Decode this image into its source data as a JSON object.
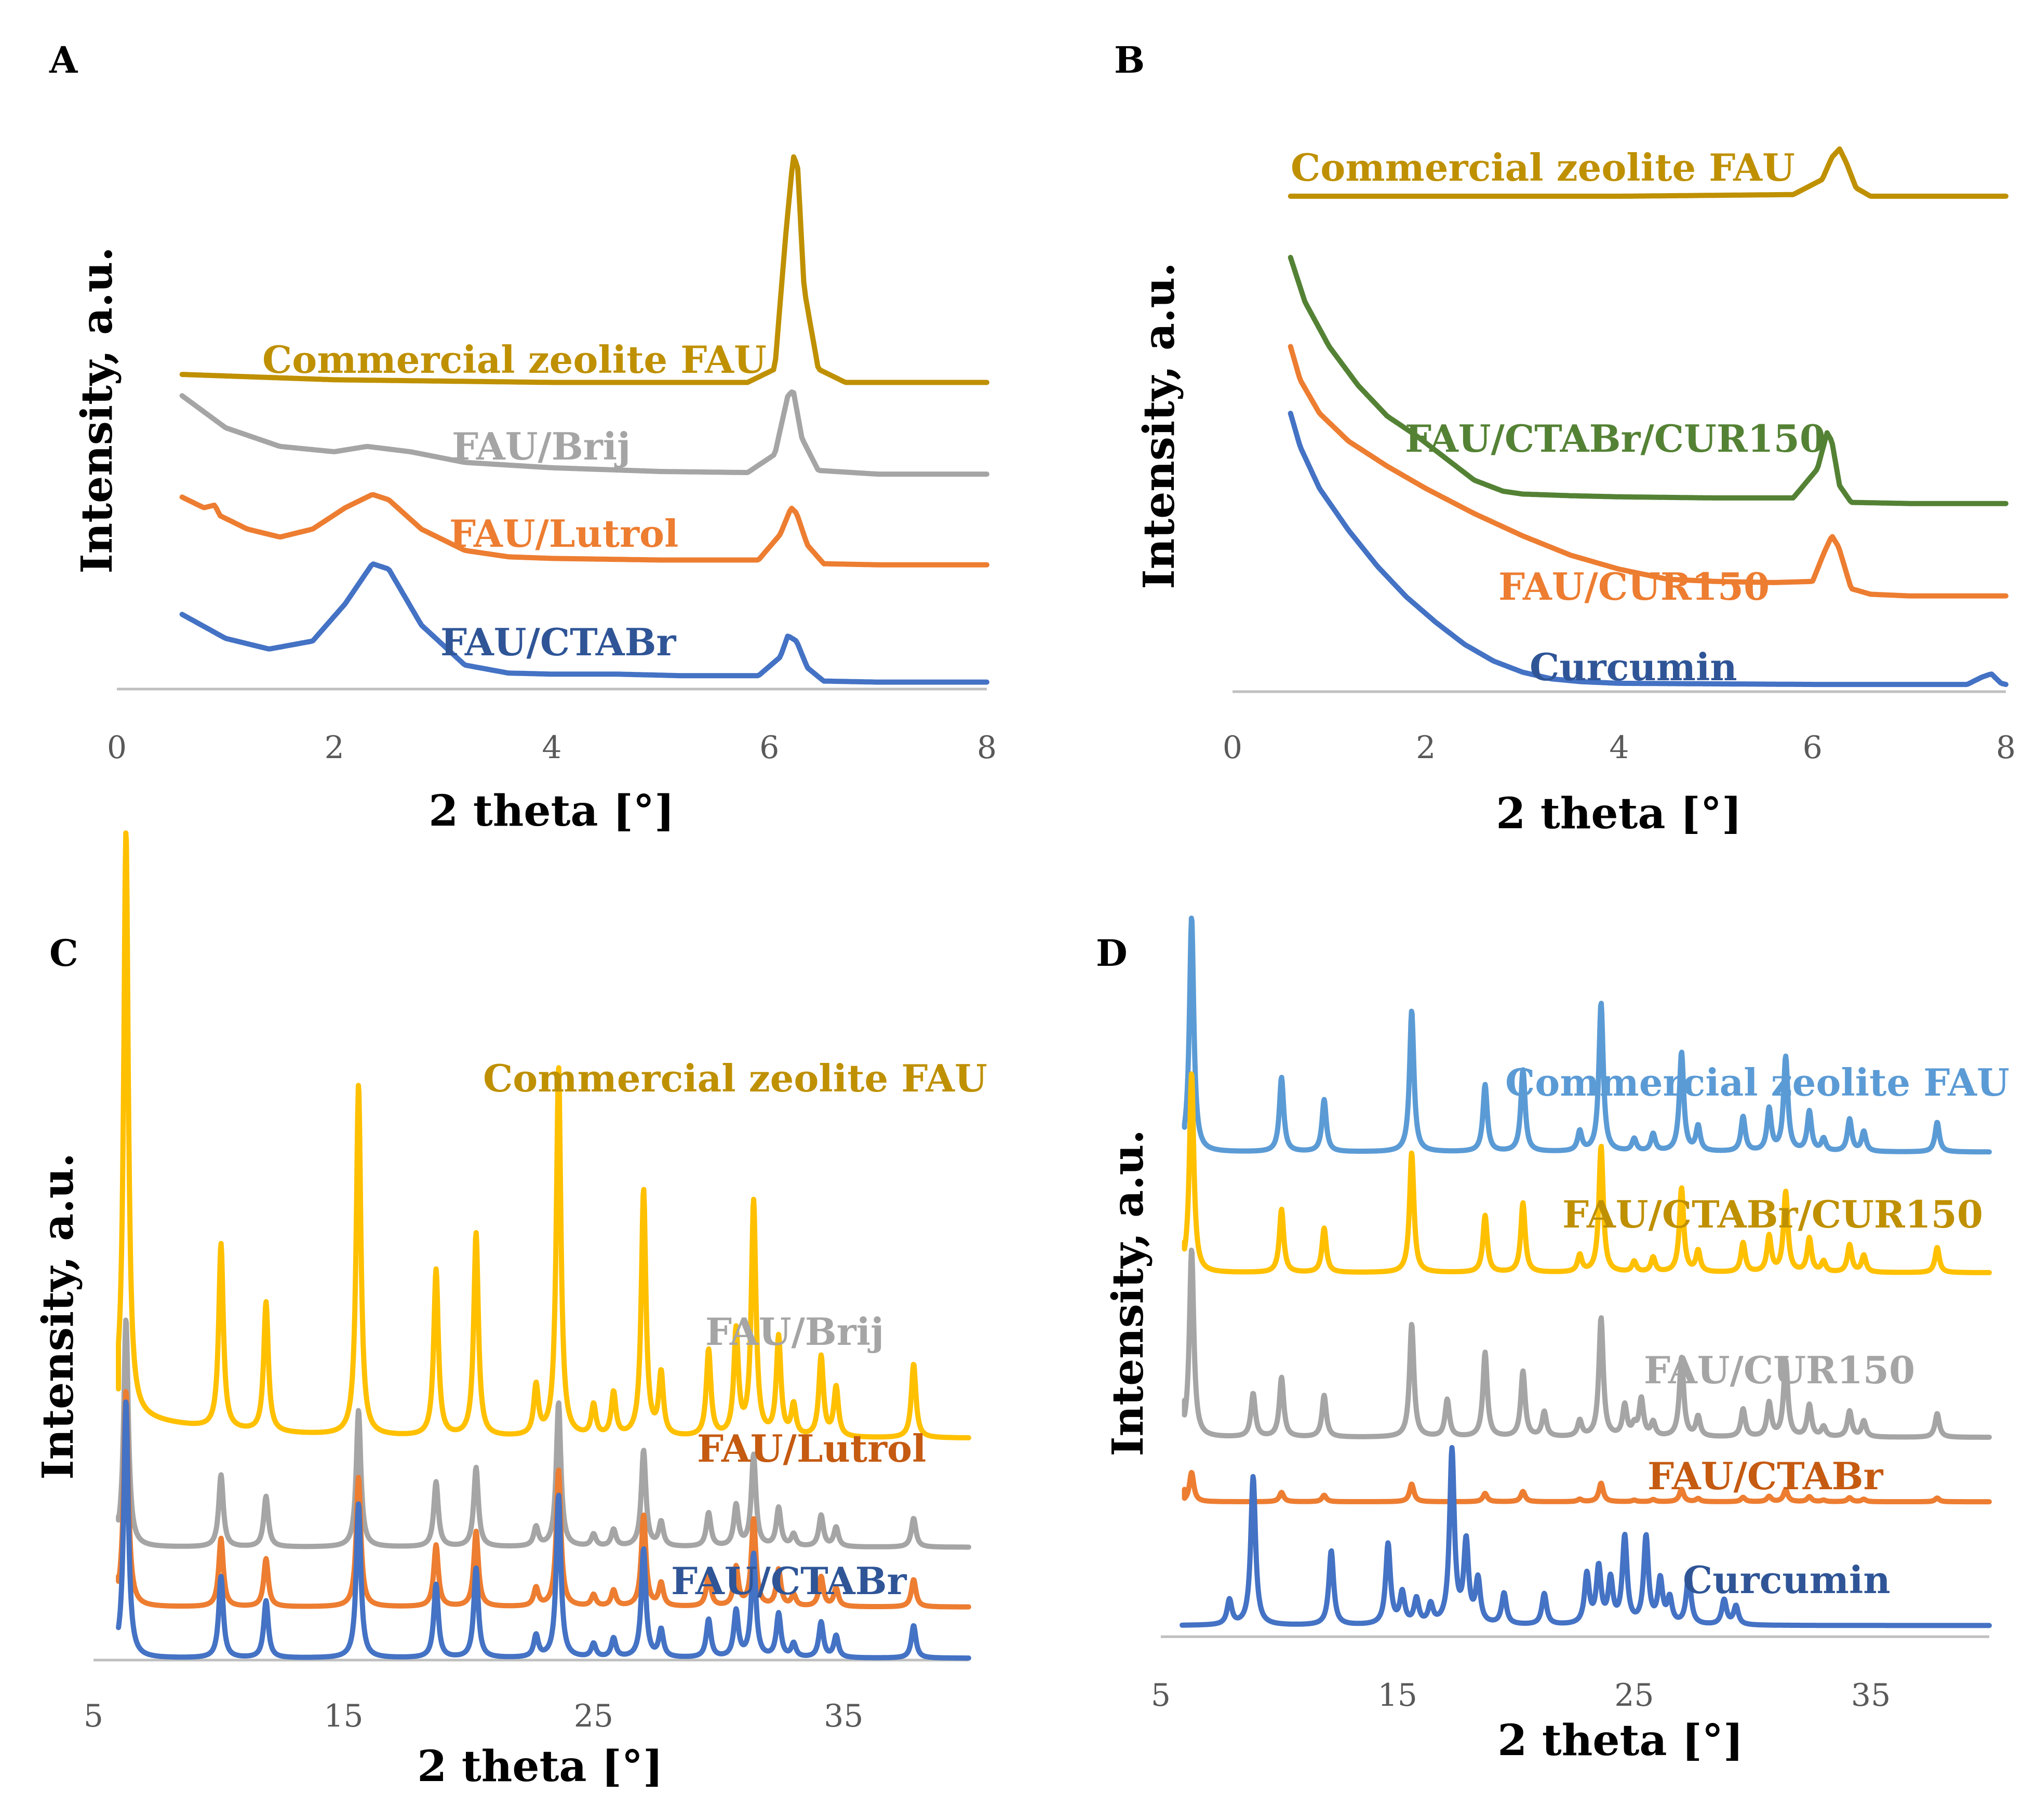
{
  "chart_data": [
    {
      "panel": "A",
      "type": "line",
      "xlabel": "2 theta [°]",
      "ylabel": "Intensity, a.u.",
      "xlim": [
        0,
        8
      ],
      "xticks": [
        "0",
        "2",
        "4",
        "6",
        "8"
      ],
      "series": [
        {
          "name": "Commercial zeolite FAU",
          "color": "#BF9000",
          "x": [
            0.6,
            2,
            4,
            5.8,
            6.05,
            6.15,
            6.22,
            6.26,
            6.32,
            6.45,
            6.7,
            8.0
          ],
          "y": [
            59,
            58,
            57.5,
            57.5,
            60,
            85,
            100,
            98,
            75,
            60,
            57.5,
            57.5
          ]
        },
        {
          "name": "FAU/Brij",
          "color": "#A5A5A5",
          "x": [
            0.6,
            1.0,
            1.5,
            2.0,
            2.3,
            2.7,
            3.2,
            4.0,
            5.0,
            5.8,
            6.05,
            6.17,
            6.22,
            6.3,
            6.45,
            7.0,
            8.0
          ],
          "y": [
            55,
            49,
            45.5,
            44.5,
            45.5,
            44.5,
            42.5,
            41.5,
            40.8,
            40.6,
            44,
            55,
            56,
            47,
            41,
            40.3,
            40.3
          ]
        },
        {
          "name": "FAU/Lutrol",
          "color": "#ED7D31",
          "x": [
            0.6,
            0.8,
            0.9,
            0.95,
            1.2,
            1.5,
            1.8,
            2.1,
            2.35,
            2.5,
            2.8,
            3.2,
            3.6,
            4.0,
            5.0,
            5.9,
            6.1,
            6.2,
            6.25,
            6.35,
            6.5,
            7.0,
            8.0
          ],
          "y": [
            36,
            34,
            34.5,
            32.5,
            30,
            28.5,
            30,
            34,
            36.5,
            35.5,
            30,
            26,
            24.8,
            24.5,
            24.2,
            24.2,
            29,
            34,
            33,
            27,
            23.5,
            23.3,
            23.3
          ]
        },
        {
          "name": "FAU/CTABr",
          "color": "#4472C4",
          "x": [
            0.6,
            1.0,
            1.4,
            1.8,
            2.1,
            2.35,
            2.5,
            2.8,
            3.2,
            3.6,
            4.0,
            4.6,
            5.2,
            5.9,
            6.1,
            6.17,
            6.25,
            6.35,
            6.5,
            7.0,
            8.0
          ],
          "y": [
            14,
            9.5,
            7.5,
            9,
            16,
            23.5,
            22.5,
            12,
            4.5,
            3,
            2.8,
            2.8,
            2.5,
            2.5,
            6,
            10,
            9,
            4,
            1.5,
            1.3,
            1.3
          ]
        }
      ],
      "labels": [
        {
          "text": "Commercial zeolite FAU",
          "color": "#BF9000"
        },
        {
          "text": "FAU/Brij",
          "color": "#A5A5A5"
        },
        {
          "text": "FAU/Lutrol",
          "color": "#ED7D31"
        },
        {
          "text": "FAU/CTABr",
          "color": "#2F5597"
        }
      ]
    },
    {
      "panel": "B",
      "type": "line",
      "xlabel": "2 theta [°]",
      "ylabel": "Intensity, a.u.",
      "xlim": [
        0,
        8
      ],
      "xticks": [
        "0",
        "2",
        "4",
        "6",
        "8"
      ],
      "series": [
        {
          "name": "Commercial zeolite FAU",
          "color": "#BF9000",
          "x": [
            0.6,
            2,
            4,
            5.8,
            6.1,
            6.2,
            6.28,
            6.35,
            6.45,
            6.6,
            7.0,
            8.0
          ],
          "y": [
            89,
            89,
            89,
            89.3,
            92,
            96,
            97.5,
            95,
            90.5,
            89,
            89,
            89
          ]
        },
        {
          "name": "FAU/CTABr/CUR150",
          "color": "#548235",
          "x": [
            0.6,
            0.75,
            1.0,
            1.3,
            1.6,
            1.9,
            2.2,
            2.5,
            2.8,
            3.0,
            3.5,
            4.0,
            5.0,
            5.8,
            6.05,
            6.15,
            6.2,
            6.28,
            6.4,
            7.0,
            8.0
          ],
          "y": [
            78,
            70,
            62,
            55,
            49.5,
            46,
            42,
            38,
            36,
            35.5,
            35.2,
            35,
            34.8,
            34.8,
            40,
            46.5,
            45,
            37,
            34,
            33.8,
            33.8
          ]
        },
        {
          "name": "FAU/CUR150",
          "color": "#ED7D31",
          "x": [
            0.6,
            0.7,
            0.9,
            1.2,
            1.6,
            2.0,
            2.5,
            3.0,
            3.5,
            4.0,
            4.5,
            5.0,
            5.6,
            6.0,
            6.12,
            6.2,
            6.27,
            6.4,
            6.6,
            7.0,
            8.0
          ],
          "y": [
            62,
            56,
            50,
            45,
            40.5,
            36.5,
            32,
            28,
            24.5,
            22,
            20.2,
            19.8,
            19.6,
            19.8,
            25,
            28,
            26,
            18.5,
            17.5,
            17.2,
            17.2
          ]
        },
        {
          "name": "Curcumin",
          "color": "#4472C4",
          "x": [
            0.6,
            0.7,
            0.9,
            1.2,
            1.5,
            1.8,
            2.1,
            2.4,
            2.7,
            3.0,
            3.3,
            3.6,
            4.0,
            5.0,
            6.0,
            7.0,
            7.6,
            7.75,
            7.85,
            7.95,
            8.0
          ],
          "y": [
            50,
            44,
            36.5,
            29,
            22.5,
            17,
            12.5,
            8.5,
            5.5,
            3.5,
            2.3,
            1.8,
            1.5,
            1.4,
            1.3,
            1.3,
            1.3,
            2.6,
            3.2,
            1.5,
            1.3
          ]
        }
      ],
      "labels": [
        {
          "text": "Commercial zeolite FAU",
          "color": "#BF9000"
        },
        {
          "text": "FAU/CTABr/CUR150",
          "color": "#548235"
        },
        {
          "text": "FAU/CUR150",
          "color": "#ED7D31"
        },
        {
          "text": "Curcumin",
          "color": "#2F5597"
        }
      ]
    },
    {
      "panel": "C",
      "type": "line",
      "xlabel": "2 theta [°]",
      "ylabel": "Intensity, a.u.",
      "xlim": [
        5,
        40
      ],
      "xticks": [
        "5",
        "15",
        "25",
        "35"
      ],
      "baselines": [
        36,
        18.3,
        8.6,
        0.3
      ],
      "onset": [
        {
          "x": 6.0,
          "dy": 8
        },
        {
          "x": 6.0,
          "dy": 5
        },
        {
          "x": 6.0,
          "dy": 5
        },
        {
          "x": 6.0,
          "dy": 5
        }
      ],
      "peak_scale": [
        1.0,
        0.39,
        0.37,
        0.44
      ],
      "peaks": [
        [
          6.3,
          95
        ],
        [
          10.1,
          30
        ],
        [
          11.9,
          21
        ],
        [
          15.6,
          57
        ],
        [
          18.7,
          27
        ],
        [
          20.3,
          33
        ],
        [
          22.7,
          8
        ],
        [
          23.6,
          60
        ],
        [
          25.0,
          5
        ],
        [
          25.8,
          7
        ],
        [
          27.0,
          40
        ],
        [
          27.7,
          10
        ],
        [
          29.6,
          14
        ],
        [
          30.7,
          17
        ],
        [
          31.4,
          38
        ],
        [
          32.4,
          16
        ],
        [
          33.0,
          5
        ],
        [
          34.1,
          13
        ],
        [
          34.7,
          8
        ],
        [
          37.8,
          12
        ]
      ],
      "series": [
        {
          "name": "Commercial zeolite FAU",
          "color": "#FFC000"
        },
        {
          "name": "FAU/Brij",
          "color": "#A5A5A5"
        },
        {
          "name": "FAU/Lutrol",
          "color": "#ED7D31"
        },
        {
          "name": "FAU/CTABr",
          "color": "#4472C4"
        }
      ],
      "labels": [
        {
          "text": "Commercial zeolite FAU",
          "color": "#BF9000"
        },
        {
          "text": "FAU/Brij",
          "color": "#A5A5A5"
        },
        {
          "text": "FAU/Lutrol",
          "color": "#C55A11"
        },
        {
          "text": "FAU/CTABr",
          "color": "#2F5597"
        }
      ]
    },
    {
      "panel": "D",
      "type": "line",
      "xlabel": "2 theta [°]",
      "ylabel": "Intensity, a.u.",
      "xlim": [
        5,
        40
      ],
      "xticks": [
        "5",
        "15",
        "25",
        "35"
      ],
      "baselines": [
        78.3,
        58.8,
        32.2,
        21.8
      ],
      "onset": [
        {
          "x": 6.0,
          "dy": 4
        },
        {
          "x": 6.0,
          "dy": 5
        },
        {
          "x": 6.0,
          "dy": 6
        },
        {
          "x": 6.0,
          "dy": 2
        }
      ],
      "peak_scale": [
        0.4,
        0.34,
        0.32,
        0.05
      ],
      "peaks": [
        [
          6.3,
          95
        ],
        [
          10.1,
          30
        ],
        [
          11.9,
          21
        ],
        [
          15.6,
          57
        ],
        [
          18.7,
          27
        ],
        [
          20.3,
          33
        ],
        [
          22.7,
          8
        ],
        [
          23.6,
          60
        ],
        [
          25.0,
          5
        ],
        [
          25.8,
          7
        ],
        [
          27.0,
          40
        ],
        [
          27.7,
          10
        ],
        [
          29.6,
          14
        ],
        [
          30.7,
          17
        ],
        [
          31.4,
          38
        ],
        [
          32.4,
          16
        ],
        [
          33.0,
          5
        ],
        [
          34.1,
          13
        ],
        [
          34.7,
          8
        ],
        [
          37.8,
          12
        ]
      ],
      "extra_peaks_series": 2,
      "extra_peaks": [
        [
          8.9,
          7
        ],
        [
          17.1,
          6
        ],
        [
          18.7,
          5
        ],
        [
          21.2,
          4
        ],
        [
          24.6,
          5
        ],
        [
          25.3,
          6
        ]
      ],
      "curcumin": {
        "baseline": 1.8,
        "peaks": [
          [
            7.9,
            4
          ],
          [
            8.9,
            24
          ],
          [
            12.2,
            12
          ],
          [
            14.6,
            13
          ],
          [
            15.2,
            5
          ],
          [
            15.8,
            4
          ],
          [
            16.4,
            3
          ],
          [
            17.3,
            28
          ],
          [
            17.9,
            13
          ],
          [
            18.4,
            7
          ],
          [
            19.5,
            5
          ],
          [
            21.2,
            5
          ],
          [
            23.0,
            8
          ],
          [
            23.5,
            9
          ],
          [
            24.0,
            7
          ],
          [
            24.6,
            14
          ],
          [
            25.5,
            14
          ],
          [
            26.1,
            7
          ],
          [
            26.5,
            4
          ],
          [
            27.3,
            8
          ],
          [
            28.8,
            4
          ],
          [
            29.3,
            3
          ]
        ]
      },
      "series": [
        {
          "name": "Commercial zeolite FAU",
          "color": "#5B9BD5"
        },
        {
          "name": "FAU/CTABr/CUR150",
          "color": "#FFC000"
        },
        {
          "name": "FAU/CUR150",
          "color": "#A5A5A5"
        },
        {
          "name": "FAU/CTABr",
          "color": "#ED7D31"
        },
        {
          "name": "Curcumin",
          "color": "#4472C4"
        }
      ],
      "labels": [
        {
          "text": "Commercial zeolite FAU",
          "color": "#5B9BD5"
        },
        {
          "text": "FAU/CTABr/CUR150",
          "color": "#BF9000"
        },
        {
          "text": "FAU/CUR150",
          "color": "#A5A5A5"
        },
        {
          "text": "FAU/CTABr",
          "color": "#C55A11"
        },
        {
          "text": "Curcumin",
          "color": "#2F5597"
        }
      ]
    }
  ]
}
